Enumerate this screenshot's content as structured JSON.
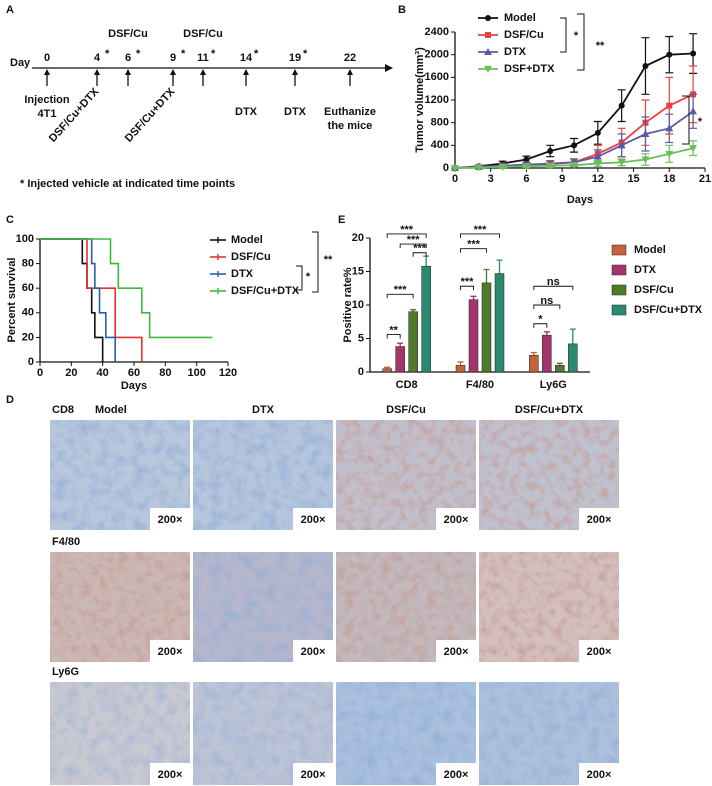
{
  "panel_labels": [
    "A",
    "B",
    "C",
    "D",
    "E"
  ],
  "timeline": {
    "day_label": "Day",
    "days": [
      "0",
      "4",
      "6",
      "9",
      "11",
      "14",
      "19",
      "22"
    ],
    "marked": "*",
    "top_labels": [
      "DSF/Cu",
      "DSF/Cu"
    ],
    "injection": [
      "Injection",
      "4T1"
    ],
    "rotated": [
      "DSF/Cu+DTX",
      "DSF/Cu+DTX"
    ],
    "dtx": [
      "DTX",
      "DTX"
    ],
    "euthanize": [
      "Euthanize",
      "the mice"
    ],
    "footnote": "* Injected vehicle at indicated time points"
  },
  "chart_data": [
    {
      "type": "line",
      "x": [
        0,
        2,
        4,
        6,
        8,
        10,
        12,
        14,
        16,
        18,
        20
      ],
      "xlim": [
        0,
        21
      ],
      "xticks": [
        0,
        3,
        6,
        9,
        12,
        15,
        18,
        21
      ],
      "ylim": [
        0,
        2400
      ],
      "yticks": [
        0,
        400,
        800,
        1200,
        1600,
        2000,
        2400
      ],
      "xlabel": "Days",
      "ylabel": "Tumor volume(mm³)",
      "series": [
        {
          "name": "Model",
          "color": "#111111",
          "marker": "circle",
          "values": [
            0,
            30,
            80,
            150,
            300,
            400,
            620,
            1100,
            1800,
            2000,
            2020
          ],
          "errors": [
            0,
            20,
            40,
            60,
            100,
            120,
            200,
            280,
            500,
            320,
            350
          ]
        },
        {
          "name": "DSF/Cu",
          "color": "#e8413f",
          "marker": "square",
          "values": [
            0,
            20,
            40,
            60,
            80,
            100,
            250,
            450,
            800,
            1100,
            1300
          ],
          "errors": [
            0,
            15,
            30,
            40,
            50,
            60,
            150,
            250,
            400,
            500,
            500
          ]
        },
        {
          "name": "DTX",
          "color": "#5a5aa6",
          "marker": "triangle-up",
          "values": [
            0,
            20,
            40,
            60,
            70,
            100,
            200,
            400,
            600,
            700,
            1000
          ],
          "errors": [
            0,
            15,
            30,
            40,
            50,
            60,
            120,
            200,
            300,
            250,
            300
          ]
        },
        {
          "name": "DSF+DTX",
          "color": "#69be5a",
          "marker": "triangle-down",
          "values": [
            0,
            10,
            20,
            30,
            40,
            50,
            80,
            100,
            150,
            250,
            350
          ],
          "errors": [
            0,
            10,
            15,
            20,
            30,
            30,
            50,
            60,
            100,
            150,
            130
          ]
        }
      ],
      "annotations": [
        "*",
        "**",
        "*"
      ]
    },
    {
      "type": "step",
      "xlim": [
        0,
        120
      ],
      "xticks": [
        0,
        20,
        40,
        60,
        80,
        100,
        120
      ],
      "ylim": [
        0,
        100
      ],
      "yticks": [
        0,
        20,
        40,
        60,
        80,
        100
      ],
      "xlabel": "Days",
      "ylabel": "Percent survival",
      "series": [
        {
          "name": "Model",
          "color": "#111111",
          "x": [
            0,
            27,
            30,
            33,
            35,
            40
          ],
          "y": [
            100,
            80,
            60,
            40,
            20,
            0
          ]
        },
        {
          "name": "DSF/Cu",
          "color": "#e8302b",
          "x": [
            0,
            30,
            48,
            65
          ],
          "y": [
            100,
            60,
            20,
            0
          ]
        },
        {
          "name": "DTX",
          "color": "#2a5db0",
          "x": [
            0,
            33,
            35,
            38,
            42,
            48
          ],
          "y": [
            100,
            80,
            60,
            40,
            20,
            0
          ]
        },
        {
          "name": "DSF/Cu+DTX",
          "color": "#3fb83a",
          "x": [
            0,
            45,
            50,
            65,
            70,
            110
          ],
          "y": [
            100,
            80,
            60,
            40,
            20,
            20
          ]
        }
      ],
      "annotations": [
        "**",
        "*"
      ]
    },
    {
      "type": "bar",
      "categories": [
        "CD8",
        "F4/80",
        "Ly6G"
      ],
      "ylim": [
        0,
        20
      ],
      "yticks": [
        0,
        5,
        10,
        15,
        20
      ],
      "ylabel": "Positive rate%",
      "series": [
        {
          "name": "Model",
          "color": "#c4623c",
          "values": [
            0.5,
            1,
            2.5
          ],
          "errors": [
            0.2,
            0.5,
            0.4
          ]
        },
        {
          "name": "DTX",
          "color": "#a4356c",
          "values": [
            3.8,
            10.8,
            5.5
          ],
          "errors": [
            0.5,
            0.5,
            0.5
          ]
        },
        {
          "name": "DSF/Cu",
          "color": "#4e7a2b",
          "values": [
            9,
            13.3,
            1
          ],
          "errors": [
            0.3,
            2,
            0.3
          ]
        },
        {
          "name": "DSF/Cu+DTX",
          "color": "#2a8a70",
          "values": [
            15.8,
            14.7,
            4.2
          ],
          "errors": [
            1.5,
            2,
            2.2
          ]
        }
      ],
      "annotations": [
        "***",
        "***",
        "***",
        "***",
        "**",
        "***",
        "***",
        "***",
        "ns",
        "ns",
        "*"
      ]
    }
  ],
  "panel_d": {
    "markers": [
      "CD8",
      "F4/80",
      "Ly6G"
    ],
    "groups": [
      "Model",
      "DTX",
      "DSF/Cu",
      "DSF/Cu+DTX"
    ],
    "magnification": "200×"
  }
}
